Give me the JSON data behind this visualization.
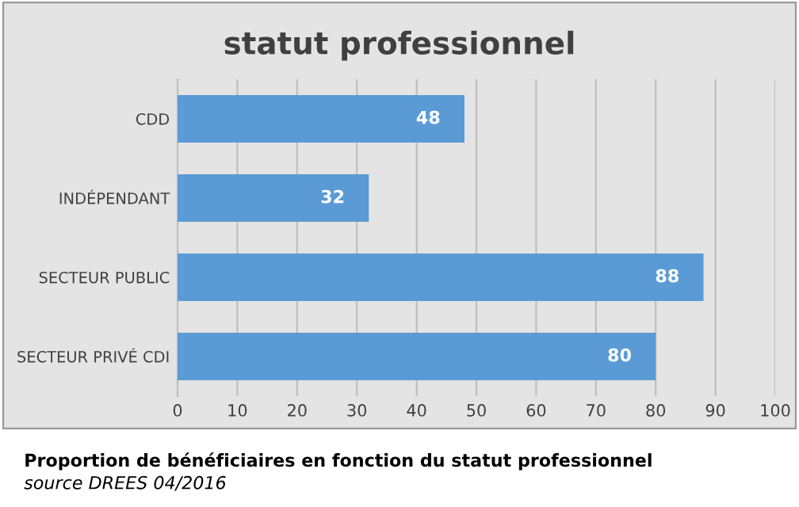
{
  "chart_data": {
    "type": "bar",
    "orientation": "horizontal",
    "title": "statut professionnel",
    "categories": [
      "CDD",
      "INDÉPENDANT",
      "SECTEUR PUBLIC",
      "SECTEUR PRIVÉ CDI"
    ],
    "values": [
      48,
      32,
      88,
      80
    ],
    "color": "#5b9bd5",
    "data_labels": true,
    "xlim": [
      0,
      100
    ],
    "xticks": [
      0,
      10,
      20,
      30,
      40,
      50,
      60,
      70,
      80,
      90,
      100
    ],
    "grid": "x",
    "annotations": [
      "Proportion de bénéficiaires en fonction du statut professionnel",
      "source DREES 04/2016"
    ]
  }
}
